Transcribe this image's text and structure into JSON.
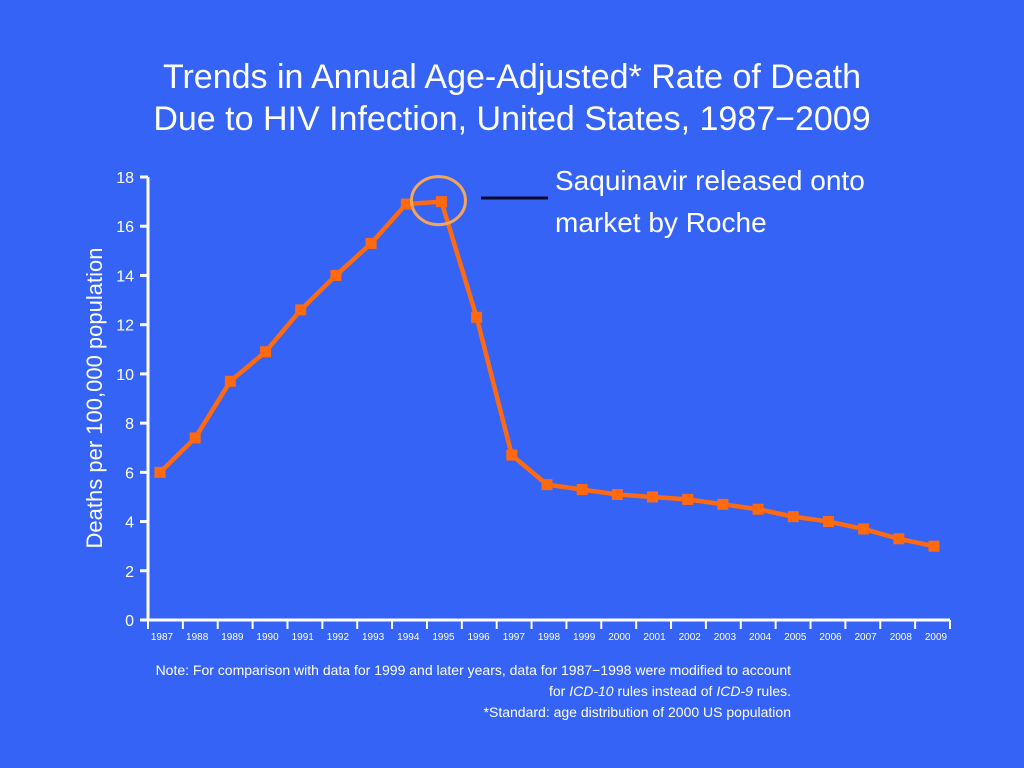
{
  "chart_data": {
    "type": "line",
    "title": "Trends in Annual Age-Adjusted* Rate of Death Due to HIV Infection, United States, 1987−2009",
    "title_lines": [
      "Trends in Annual Age-Adjusted* Rate of Death",
      "Due to HIV Infection, United States, 1987−2009"
    ],
    "xlabel": "",
    "ylabel": "Deaths per 100,000 population",
    "ylim": [
      0,
      18
    ],
    "yticks": [
      "0",
      "2",
      "4",
      "6",
      "8",
      "10",
      "12",
      "14",
      "16",
      "18"
    ],
    "x": [
      "1987",
      "1988",
      "1989",
      "1990",
      "1991",
      "1992",
      "1993",
      "1994",
      "1995",
      "1996",
      "1997",
      "1998",
      "1999",
      "2000",
      "2001",
      "2002",
      "2003",
      "2004",
      "2005",
      "2006",
      "2007",
      "2008",
      "2009"
    ],
    "values": [
      6.0,
      7.4,
      9.7,
      10.9,
      12.6,
      14.0,
      15.3,
      16.9,
      17.0,
      12.3,
      6.7,
      5.5,
      5.3,
      5.1,
      5.0,
      4.9,
      4.7,
      4.5,
      4.2,
      4.0,
      3.7,
      3.3,
      3.0
    ],
    "grid": false,
    "colors": {
      "line": "#ff6a10",
      "highlight_circle": "#f5a55a",
      "background": "#3563f6",
      "axis": "#ffffff",
      "connector": "#0a0a30"
    },
    "annotation": {
      "text_lines": [
        "Saquinavir released onto",
        "market by Roche"
      ],
      "highlight_year": "1995"
    }
  },
  "notes": {
    "line1": "Note: For comparison with data for 1999 and later years, data for 1987−1998 were modified to account",
    "line2_pre": "for ",
    "line2_em1": "ICD-10",
    "line2_mid": " rules instead of ",
    "line2_em2": "ICD-9",
    "line2_post": " rules.",
    "line3": "*Standard: age distribution of 2000 US population"
  }
}
